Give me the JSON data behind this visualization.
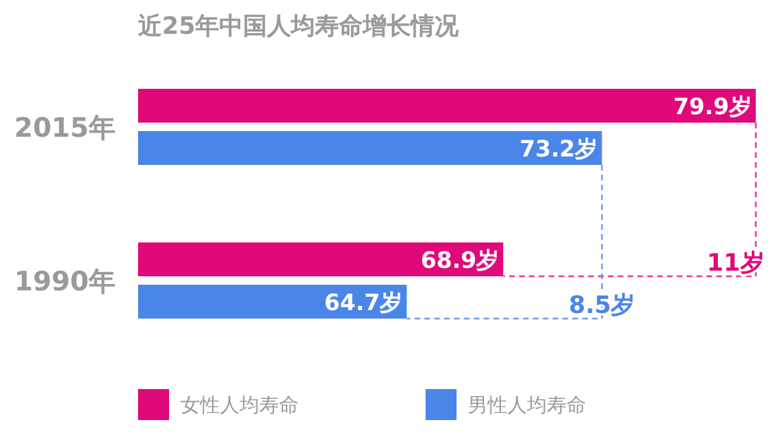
{
  "chart_data": {
    "type": "bar",
    "orientation": "horizontal",
    "title": "近25年中国人均寿命增长情况",
    "categories": [
      "2015年",
      "1990年"
    ],
    "xlim": [
      53,
      80
    ],
    "series": [
      {
        "name": "女性人均寿命",
        "color": "#e0097a",
        "values": [
          79.9,
          68.9
        ],
        "value_labels": [
          "79.9岁",
          "68.9岁"
        ]
      },
      {
        "name": "男性人均寿命",
        "color": "#4a86e8",
        "values": [
          73.2,
          64.7
        ],
        "value_labels": [
          "73.2岁",
          "64.7岁"
        ]
      }
    ],
    "annotations": [
      "11岁",
      "8.5岁"
    ],
    "legend": "bottom"
  }
}
